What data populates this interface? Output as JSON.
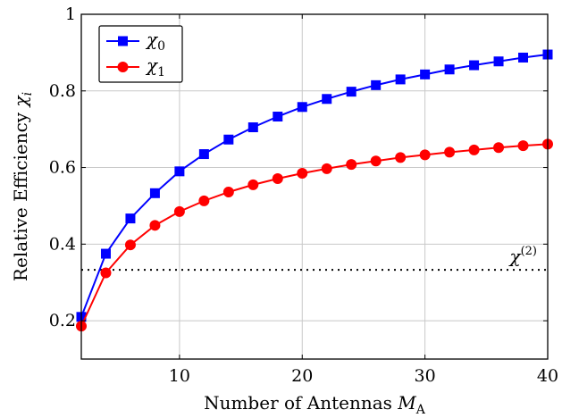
{
  "chart_data": {
    "type": "line",
    "xlabel": "Number of Antennas M_A",
    "xlabel_parts": {
      "text": "Number of Antennas ",
      "symbol": "M",
      "subscript": "A"
    },
    "ylabel": "Relative Efficiency χ_i",
    "ylabel_parts": {
      "text": "Relative Efficiency ",
      "symbol": "χ",
      "subscript": "i"
    },
    "xlim": [
      2,
      40
    ],
    "ylim": [
      0.1,
      1.0
    ],
    "x_ticks": [
      10,
      20,
      30,
      40
    ],
    "y_ticks": [
      0.2,
      0.4,
      0.6,
      0.8,
      1.0
    ],
    "x_tick_labels": [
      "10",
      "20",
      "30",
      "40"
    ],
    "y_tick_labels": [
      "0.2",
      "0.4",
      "0.6",
      "0.8",
      "1"
    ],
    "grid": true,
    "legend_position": "top-left",
    "x": [
      2,
      4,
      6,
      8,
      10,
      12,
      14,
      16,
      18,
      20,
      22,
      24,
      26,
      28,
      30,
      32,
      34,
      36,
      38,
      40
    ],
    "series": [
      {
        "name": "χ0",
        "name_parts": {
          "symbol": "χ",
          "subscript": "0"
        },
        "color": "#0000ff",
        "marker": "square",
        "values": [
          0.21,
          0.375,
          0.467,
          0.533,
          0.59,
          0.635,
          0.673,
          0.705,
          0.733,
          0.758,
          0.779,
          0.798,
          0.815,
          0.83,
          0.843,
          0.856,
          0.867,
          0.877,
          0.887,
          0.895
        ]
      },
      {
        "name": "χ1",
        "name_parts": {
          "symbol": "χ",
          "subscript": "1"
        },
        "color": "#ff0000",
        "marker": "circle",
        "values": [
          0.186,
          0.325,
          0.398,
          0.449,
          0.485,
          0.513,
          0.536,
          0.555,
          0.571,
          0.585,
          0.597,
          0.608,
          0.617,
          0.626,
          0.633,
          0.64,
          0.646,
          0.652,
          0.657,
          0.661
        ]
      }
    ],
    "reference_line": {
      "y": 0.333,
      "style": "dotted",
      "color": "#000000",
      "label": "χ(2)",
      "label_parts": {
        "symbol": "χ",
        "superscript": "(2)"
      }
    }
  }
}
